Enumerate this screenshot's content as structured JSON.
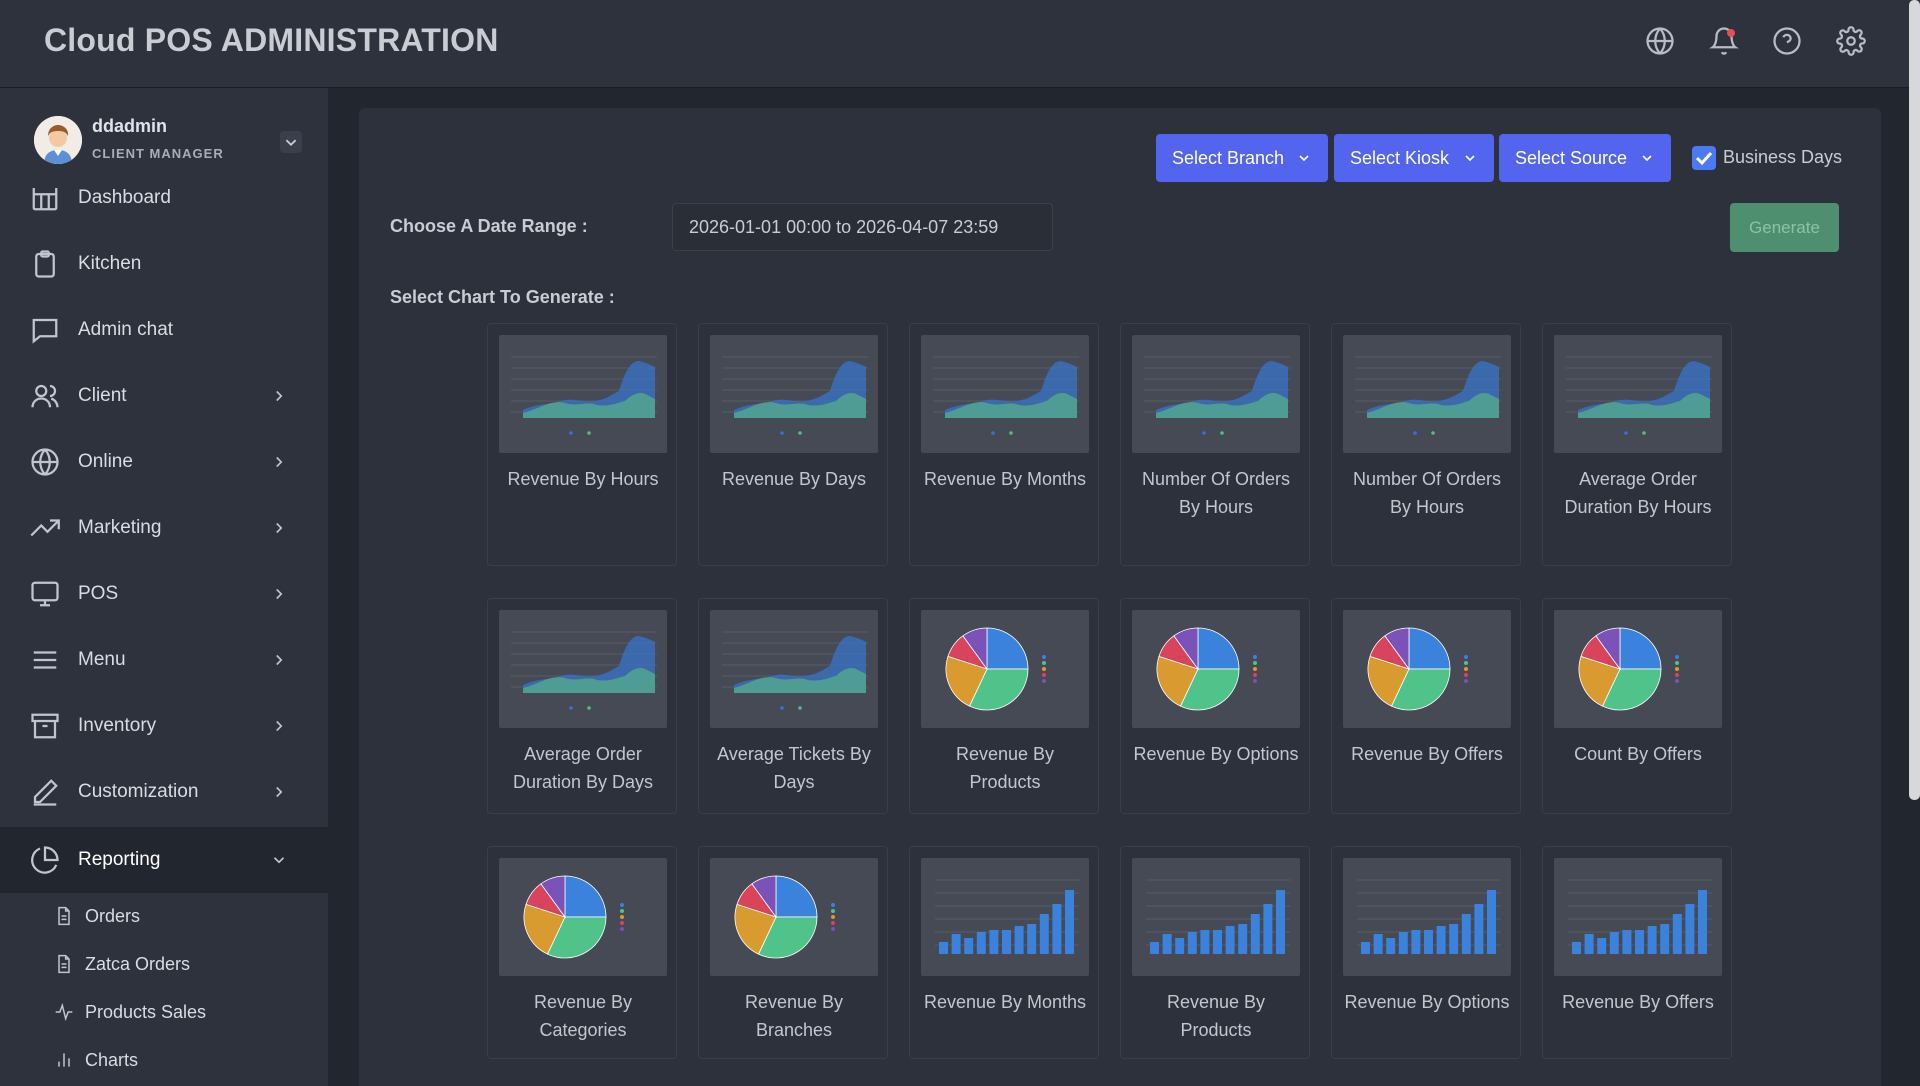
{
  "header": {
    "title": "Cloud POS ADMINISTRATION",
    "icons": [
      "globe-icon",
      "bell-icon",
      "help-icon",
      "settings-icon"
    ]
  },
  "user": {
    "name": "ddadmin",
    "role": "CLIENT MANAGER"
  },
  "sidebar": {
    "items": [
      {
        "label": "Dashboard",
        "icon": "dashboard-icon"
      },
      {
        "label": "Kitchen",
        "icon": "clipboard-icon"
      },
      {
        "label": "Admin chat",
        "icon": "chat-icon"
      },
      {
        "label": "Client",
        "icon": "users-icon"
      },
      {
        "label": "Online",
        "icon": "globe-icon"
      },
      {
        "label": "Marketing",
        "icon": "trend-icon"
      },
      {
        "label": "POS",
        "icon": "monitor-icon"
      },
      {
        "label": "Menu",
        "icon": "menu-icon"
      },
      {
        "label": "Inventory",
        "icon": "archive-icon"
      },
      {
        "label": "Customization",
        "icon": "pen-icon"
      },
      {
        "label": "Reporting",
        "icon": "pie-icon"
      }
    ],
    "subitems": [
      {
        "label": "Orders",
        "icon": "document-icon"
      },
      {
        "label": "Zatca Orders",
        "icon": "document-icon"
      },
      {
        "label": "Products Sales",
        "icon": "pulse-icon"
      },
      {
        "label": "Charts",
        "icon": "bar-chart-icon"
      }
    ]
  },
  "filters": {
    "branch": "Select Branch",
    "kiosk": "Select Kiosk",
    "source": "Select Source",
    "business_days_label": "Business Days",
    "business_days_checked": true
  },
  "date_range": {
    "label": "Choose A Date Range :",
    "value": "2026-01-01 00:00 to 2026-04-07 23:59"
  },
  "generate_label": "Generate",
  "charts_label": "Select Chart To Generate :",
  "chart_options": [
    {
      "name": "Revenue By Hours",
      "type": "area"
    },
    {
      "name": "Revenue By Days",
      "type": "area"
    },
    {
      "name": "Revenue By Months",
      "type": "area"
    },
    {
      "name": "Number Of Orders By Hours",
      "type": "area"
    },
    {
      "name": "Number Of Orders By Hours",
      "type": "area"
    },
    {
      "name": "Average Order Duration By Hours",
      "type": "area"
    },
    {
      "name": "Average Order Duration By Days",
      "type": "area"
    },
    {
      "name": "Average Tickets By Days",
      "type": "area"
    },
    {
      "name": "Revenue By Products",
      "type": "pie"
    },
    {
      "name": "Revenue By Options",
      "type": "pie"
    },
    {
      "name": "Revenue By Offers",
      "type": "pie"
    },
    {
      "name": "Count By Offers",
      "type": "pie"
    },
    {
      "name": "Revenue By Categories",
      "type": "pie"
    },
    {
      "name": "Revenue By Branches",
      "type": "pie"
    },
    {
      "name": "Revenue By Months",
      "type": "bar"
    },
    {
      "name": "Revenue By Products",
      "type": "bar"
    },
    {
      "name": "Revenue By Options",
      "type": "bar"
    },
    {
      "name": "Revenue By Offers",
      "type": "bar"
    }
  ],
  "colors": {
    "accent": "#5364ef",
    "generate": "#4d8f6f",
    "pie": [
      "#3b82dc",
      "#4fc389",
      "#d99a30",
      "#d9445c",
      "#7b52b8"
    ]
  }
}
